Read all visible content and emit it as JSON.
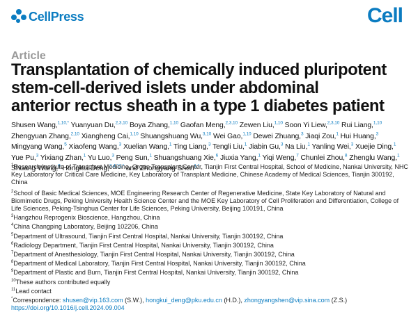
{
  "header": {
    "publisher_logo": "CellPress",
    "journal_logo": "Cell",
    "brand_color": "#0b7cc1"
  },
  "article_type": "Article",
  "title_lines": [
    "Transplantation of chemically induced pluripotent",
    "stem-cell-derived islets under abdominal",
    "anterior rectus sheath in a type 1 diabetes patient"
  ],
  "authors": [
    {
      "name": "Shusen Wang,",
      "sup": "1,10,*"
    },
    {
      "name": "Yuanyuan Du,",
      "sup": "2,3,10"
    },
    {
      "name": "Boya Zhang,",
      "sup": "1,10"
    },
    {
      "name": "Gaofan Meng,",
      "sup": "2,3,10"
    },
    {
      "name": "Zewen Liu,",
      "sup": "1,10"
    },
    {
      "name": "Soon Yi Liew,",
      "sup": "2,3,10"
    },
    {
      "name": "Rui Liang,",
      "sup": "1,10"
    },
    {
      "name": "Zhengyuan Zhang,",
      "sup": "2,10"
    },
    {
      "name": "Xiangheng Cai,",
      "sup": "1,10"
    },
    {
      "name": "Shuangshuang Wu,",
      "sup": "3,10"
    },
    {
      "name": "Wei Gao,",
      "sup": "1,10"
    },
    {
      "name": "Dewei Zhuang,",
      "sup": "3"
    },
    {
      "name": "Jiaqi Zou,",
      "sup": "1"
    },
    {
      "name": "Hui Huang,",
      "sup": "3"
    },
    {
      "name": "Mingyang Wang,",
      "sup": "5"
    },
    {
      "name": "Xiaofeng Wang,",
      "sup": "3"
    },
    {
      "name": "Xuelian Wang,",
      "sup": "1"
    },
    {
      "name": "Ting Liang,",
      "sup": "3"
    },
    {
      "name": "Tengli Liu,",
      "sup": "1"
    },
    {
      "name": "Jiabin Gu,",
      "sup": "3"
    },
    {
      "name": "Na Liu,",
      "sup": "1"
    },
    {
      "name": "Yanling Wei,",
      "sup": "3"
    },
    {
      "name": "Xuejie Ding,",
      "sup": "1"
    },
    {
      "name": "Yue Pu,",
      "sup": "3"
    },
    {
      "name": "Yixiang Zhan,",
      "sup": "1"
    },
    {
      "name": "Yu Luo,",
      "sup": "3"
    },
    {
      "name": "Peng Sun,",
      "sup": "1"
    },
    {
      "name": "Shuangshuang Xie,",
      "sup": "6"
    },
    {
      "name": "Jiuxia Yang,",
      "sup": "1"
    },
    {
      "name": "Yiqi Weng,",
      "sup": "7"
    },
    {
      "name": "Chunlei Zhou,",
      "sup": "8"
    },
    {
      "name": "Zhenglu Wang,",
      "sup": "1"
    },
    {
      "name": "Shuang Wang,",
      "sup": "9"
    },
    {
      "name": "Hongkui Deng,",
      "sup": "2,4,11,*"
    },
    {
      "name": "and Zhongyang Shen",
      "sup": "1,*"
    }
  ],
  "affiliations": [
    {
      "sup": "1",
      "text": "Research Institute of Transplant Medicine, Organ Transplant Center, Tianjin First Central Hospital, School of Medicine, Nankai University, NHC Key Laboratory for Critical Care Medicine, Key Laboratory of Transplant Medicine, Chinese Academy of Medical Sciences, Tianjin 300192, China"
    },
    {
      "sup": "2",
      "text": "School of Basic Medical Sciences, MOE Engineering Research Center of Regenerative Medicine, State Key Laboratory of Natural and Biomimetic Drugs, Peking University Health Science Center and the MOE Key Laboratory of Cell Proliferation and Differentiation, College of Life Sciences, Peking-Tsinghua Center for Life Sciences, Peking University, Beijing 100191, China"
    },
    {
      "sup": "3",
      "text": "Hangzhou Reprogenix Bioscience, Hangzhou, China"
    },
    {
      "sup": "4",
      "text": "China Changping Laboratory, Beijing 102206, China"
    },
    {
      "sup": "5",
      "text": "Department of Ultrasound, Tianjin First Central Hospital, Nankai University, Tianjin 300192, China"
    },
    {
      "sup": "6",
      "text": "Radiology Department, Tianjin First Central Hospital, Nankai University, Tianjin 300192, China"
    },
    {
      "sup": "7",
      "text": "Department of Anesthesiology, Tianjin First Central Hospital, Nankai University, Tianjin 300192, China"
    },
    {
      "sup": "8",
      "text": "Department of Medical Laboratory, Tianjin First Central Hospital, Nankai University, Tianjin 300192, China"
    },
    {
      "sup": "9",
      "text": "Department of Plastic and Burn, Tianjin First Central Hospital, Nankai University, Tianjin 300192, China"
    },
    {
      "sup": "10",
      "text": "These authors contributed equally"
    },
    {
      "sup": "11",
      "text": "Lead contact"
    }
  ],
  "correspondence": {
    "label": "Correspondence:",
    "entries": [
      {
        "email": "shusen@vip.163.com",
        "initials": "(S.W.),"
      },
      {
        "email": "hongkui_deng@pku.edu.cn",
        "initials": "(H.D.),"
      },
      {
        "email": "zhongyangshen@vip.sina.com",
        "initials": "(Z.S.)"
      }
    ]
  },
  "doi": "https://doi.org/10.1016/j.cell.2024.09.004"
}
